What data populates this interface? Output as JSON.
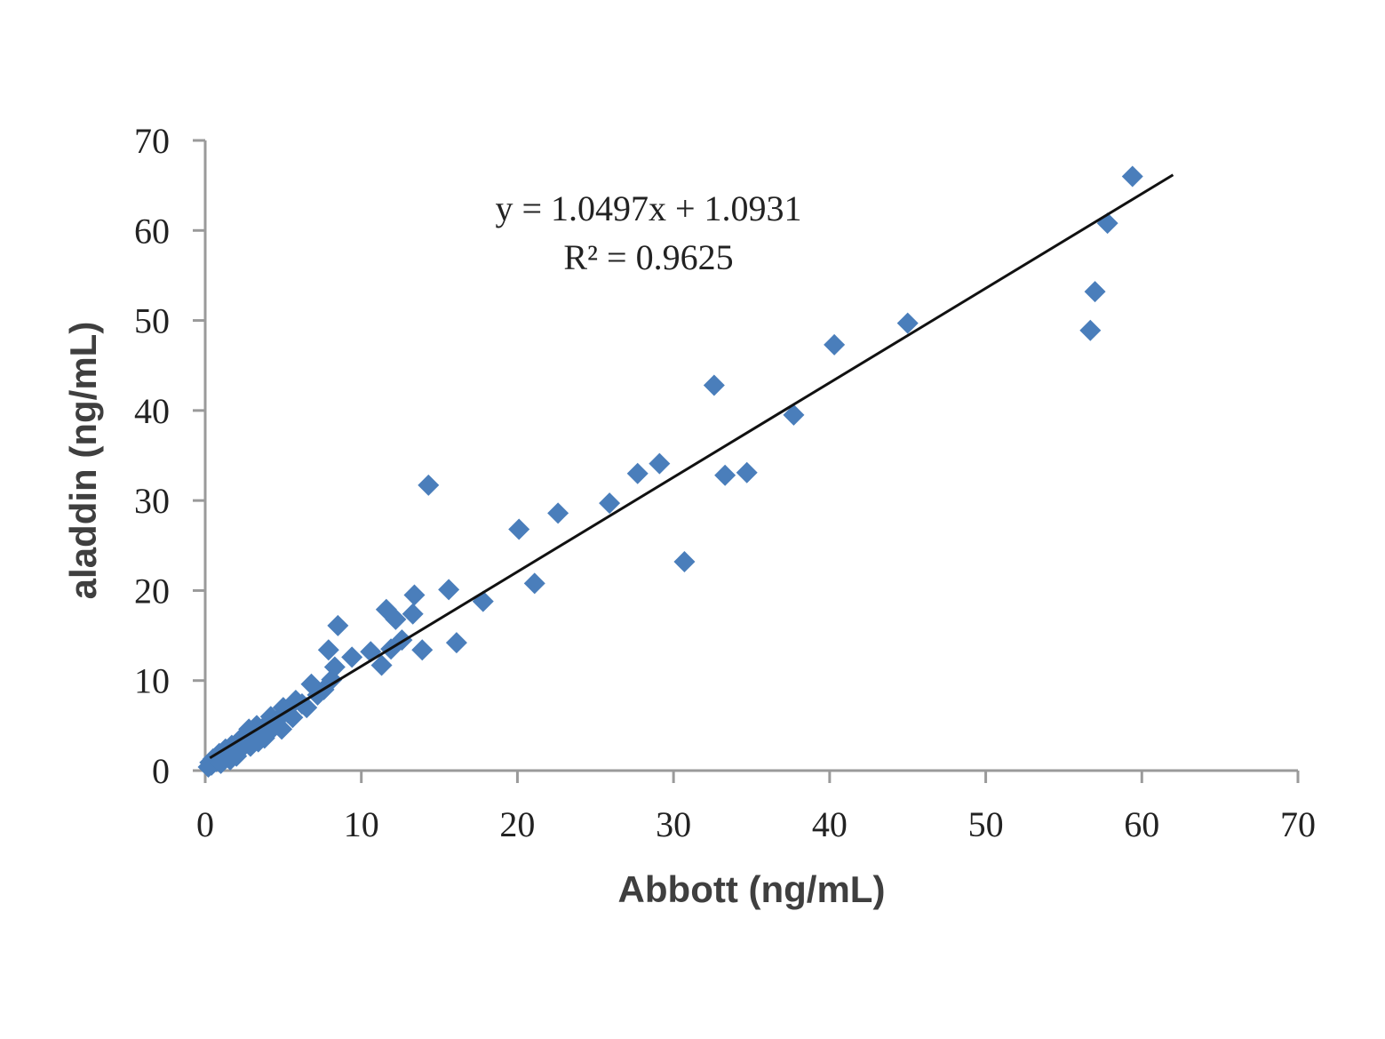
{
  "chart_data": {
    "type": "scatter",
    "title": "",
    "xlabel": "Abbott (ng/mL)",
    "ylabel": "aladdin (ng/mL)",
    "xlim": [
      0,
      70
    ],
    "ylim": [
      0,
      70
    ],
    "xticks": [
      0,
      10,
      20,
      30,
      40,
      50,
      60,
      70
    ],
    "yticks": [
      0,
      10,
      20,
      30,
      40,
      50,
      60,
      70
    ],
    "grid": false,
    "marker": "diamond",
    "marker_color": "#4a7ebb",
    "trendline": {
      "slope": 1.0497,
      "intercept": 1.0931,
      "x_range": [
        0.3,
        62
      ],
      "color": "#111111"
    },
    "annotations": {
      "equation": "y = 1.0497x + 1.0931",
      "r2": "R² = 0.9625"
    },
    "points": [
      [
        59.4,
        66.0
      ],
      [
        57.8,
        60.8
      ],
      [
        57.0,
        53.2
      ],
      [
        56.7,
        48.9
      ],
      [
        45.0,
        49.7
      ],
      [
        40.3,
        47.3
      ],
      [
        32.6,
        42.8
      ],
      [
        37.7,
        39.5
      ],
      [
        29.1,
        34.1
      ],
      [
        27.7,
        33.0
      ],
      [
        33.3,
        32.8
      ],
      [
        34.7,
        33.1
      ],
      [
        14.3,
        31.7
      ],
      [
        25.9,
        29.7
      ],
      [
        22.6,
        28.6
      ],
      [
        20.1,
        26.8
      ],
      [
        30.7,
        23.2
      ],
      [
        21.1,
        20.8
      ],
      [
        17.8,
        18.8
      ],
      [
        15.6,
        20.1
      ],
      [
        13.4,
        19.5
      ],
      [
        13.3,
        17.4
      ],
      [
        11.6,
        17.9
      ],
      [
        12.2,
        16.8
      ],
      [
        8.5,
        16.1
      ],
      [
        16.1,
        14.2
      ],
      [
        13.9,
        13.4
      ],
      [
        7.9,
        13.4
      ],
      [
        9.4,
        12.6
      ],
      [
        10.6,
        13.2
      ],
      [
        11.3,
        11.7
      ],
      [
        11.9,
        13.5
      ],
      [
        12.6,
        14.5
      ],
      [
        8.3,
        11.5
      ],
      [
        8.1,
        10.1
      ],
      [
        7.6,
        9.0
      ],
      [
        6.8,
        9.6
      ],
      [
        7.2,
        8.4
      ],
      [
        6.2,
        7.4
      ],
      [
        5.8,
        7.8
      ],
      [
        5.3,
        6.4
      ],
      [
        5.0,
        7.0
      ],
      [
        4.6,
        5.6
      ],
      [
        4.2,
        6.0
      ],
      [
        3.9,
        5.1
      ],
      [
        3.6,
        4.4
      ],
      [
        3.3,
        5.0
      ],
      [
        3.0,
        3.9
      ],
      [
        2.8,
        4.6
      ],
      [
        2.6,
        3.1
      ],
      [
        2.4,
        2.6
      ],
      [
        2.2,
        3.4
      ],
      [
        1.9,
        2.2
      ],
      [
        1.7,
        2.8
      ],
      [
        1.5,
        1.8
      ],
      [
        1.3,
        2.4
      ],
      [
        1.1,
        1.5
      ],
      [
        0.9,
        1.9
      ],
      [
        0.7,
        1.0
      ],
      [
        0.5,
        1.3
      ],
      [
        0.4,
        0.6
      ],
      [
        0.3,
        0.9
      ],
      [
        0.2,
        0.4
      ],
      [
        1.6,
        1.2
      ],
      [
        2.9,
        2.7
      ],
      [
        3.4,
        3.2
      ],
      [
        4.4,
        4.8
      ],
      [
        5.6,
        5.9
      ],
      [
        6.5,
        7.0
      ],
      [
        4.9,
        4.6
      ],
      [
        3.8,
        3.6
      ],
      [
        2.0,
        1.6
      ],
      [
        1.0,
        0.8
      ]
    ]
  }
}
